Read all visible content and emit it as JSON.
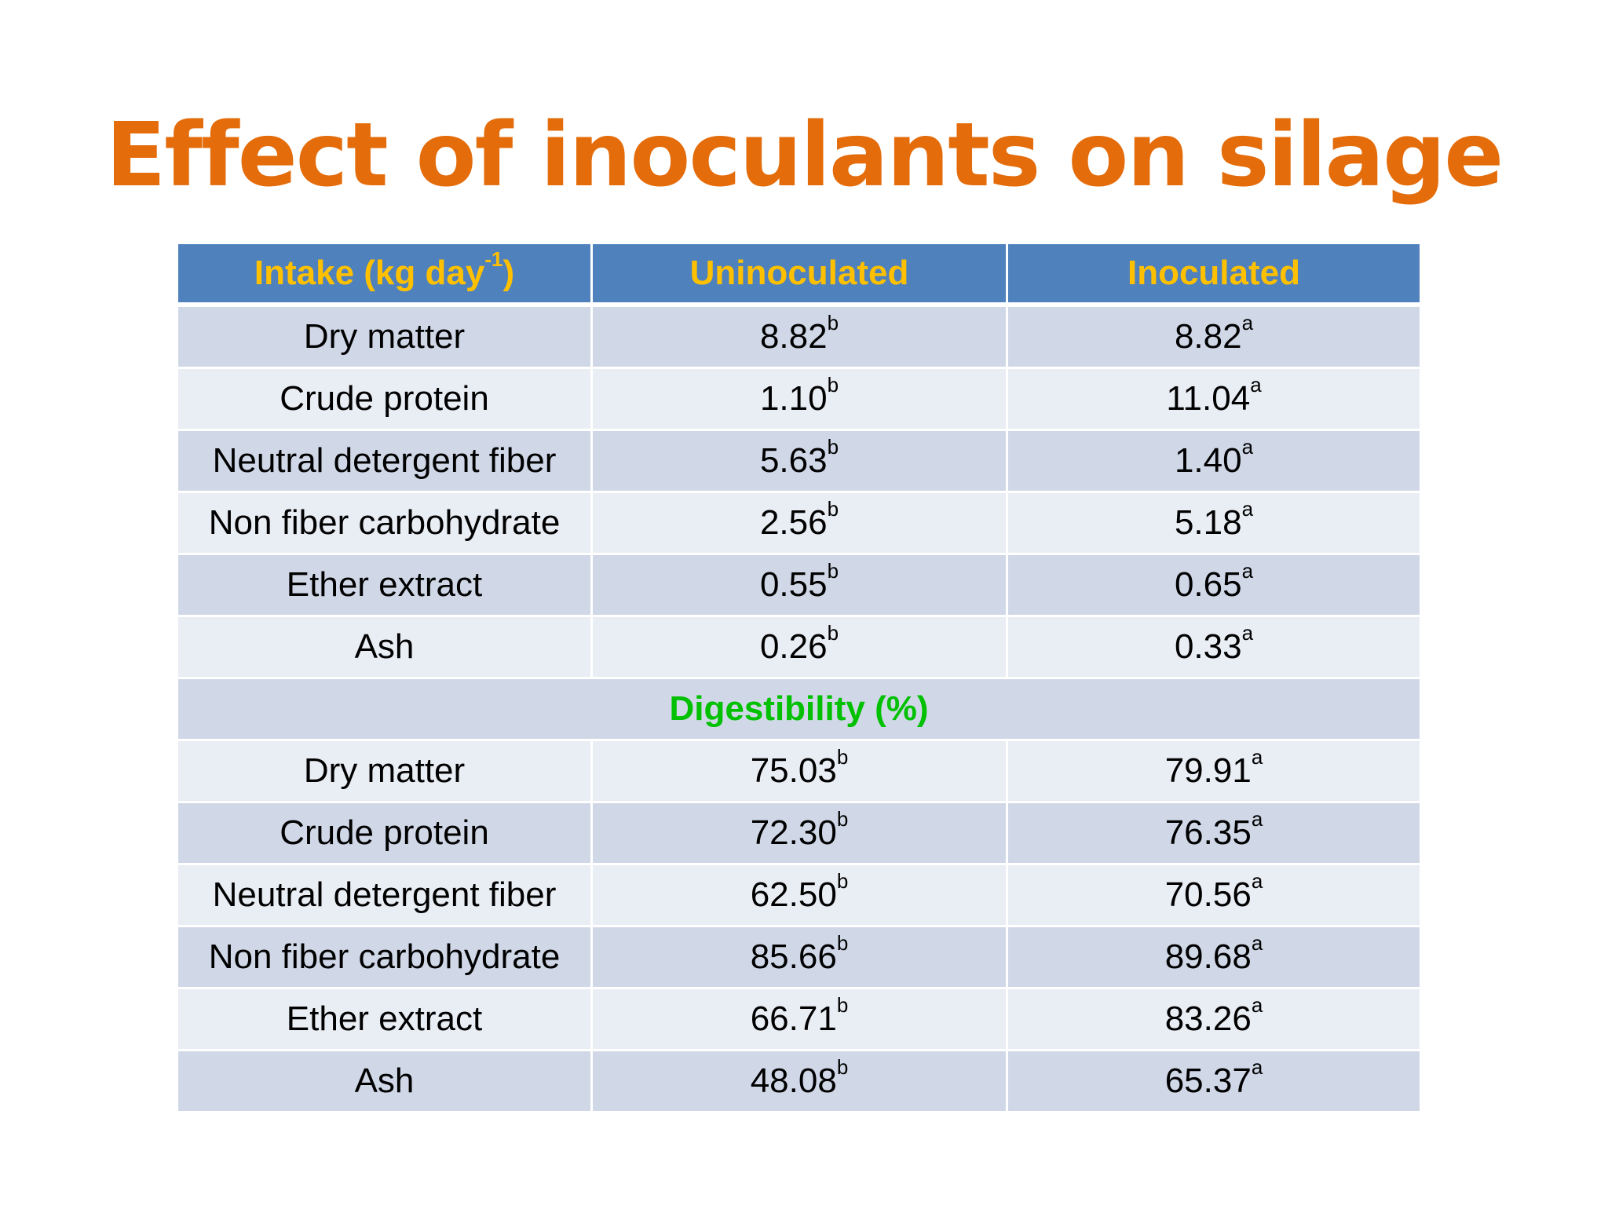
{
  "title": "Effect of inoculants on silage",
  "header": {
    "col1_label": "Intake (kg day",
    "col1_sup": "-1",
    "col1_suffix": ")",
    "col2_label": "Uninoculated",
    "col3_label": "Inoculated"
  },
  "intake_rows": [
    {
      "label": "Dry matter",
      "uninoculated": "8.82",
      "uninoculated_sup": "b",
      "inoculated": "8.82",
      "inoculated_sup": "a"
    },
    {
      "label": "Crude protein",
      "uninoculated": "1.10",
      "uninoculated_sup": "b",
      "inoculated": "11.04",
      "inoculated_sup": "a"
    },
    {
      "label": "Neutral detergent fiber",
      "uninoculated": "5.63",
      "uninoculated_sup": "b",
      "inoculated": "1.40",
      "inoculated_sup": "a"
    },
    {
      "label": "Non fiber carbohydrate",
      "uninoculated": "2.56",
      "uninoculated_sup": "b",
      "inoculated": "5.18",
      "inoculated_sup": "a"
    },
    {
      "label": "Ether extract",
      "uninoculated": "0.55",
      "uninoculated_sup": "b",
      "inoculated": "0.65",
      "inoculated_sup": "a"
    },
    {
      "label": "Ash",
      "uninoculated": "0.26",
      "uninoculated_sup": "b",
      "inoculated": "0.33",
      "inoculated_sup": "a"
    }
  ],
  "section_label": "Digestibility (%)",
  "digestibility_rows": [
    {
      "label": "Dry matter",
      "uninoculated": "75.03",
      "uninoculated_sup": "b",
      "inoculated": "79.91",
      "inoculated_sup": "a"
    },
    {
      "label": "Crude protein",
      "uninoculated": "72.30",
      "uninoculated_sup": "b",
      "inoculated": "76.35",
      "inoculated_sup": "a"
    },
    {
      "label": "Neutral detergent fiber",
      "uninoculated": "62.50",
      "uninoculated_sup": "b",
      "inoculated": "70.56",
      "inoculated_sup": "a"
    },
    {
      "label": "Non fiber carbohydrate",
      "uninoculated": "85.66",
      "uninoculated_sup": "b",
      "inoculated": "89.68",
      "inoculated_sup": "a"
    },
    {
      "label": "Ether extract",
      "uninoculated": "66.71",
      "uninoculated_sup": "b",
      "inoculated": "83.26",
      "inoculated_sup": "a"
    },
    {
      "label": "Ash",
      "uninoculated": "48.08",
      "uninoculated_sup": "b",
      "inoculated": "65.37",
      "inoculated_sup": "a"
    }
  ],
  "colors": {
    "title": "#e46c0a",
    "header_bg": "#4f81bd",
    "header_text": "#ffc000",
    "row_dark": "#d0d8e8",
    "row_light": "#e9edf4",
    "section_text": "#00c000"
  }
}
